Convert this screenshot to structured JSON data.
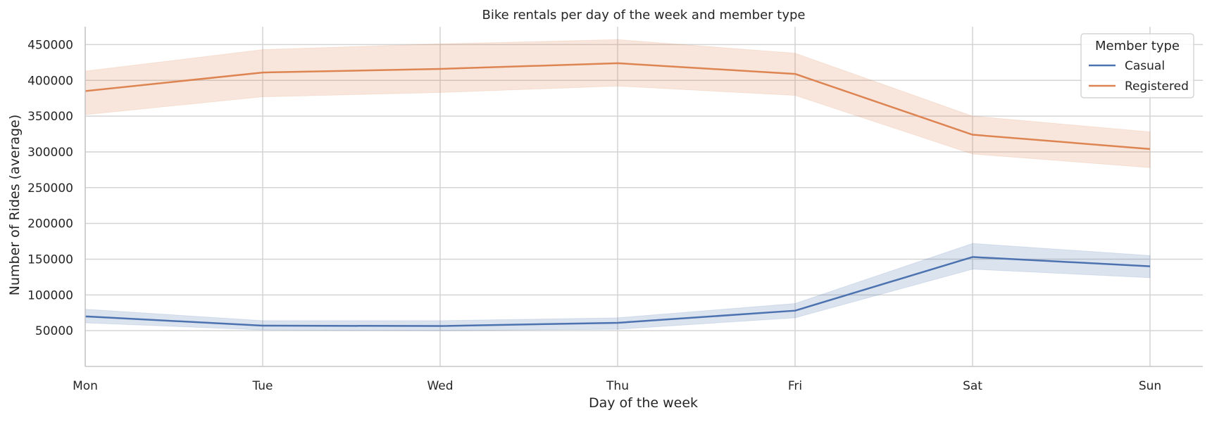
{
  "chart_data": {
    "type": "line",
    "title": "Bike rentals per day of the week and member type",
    "xlabel": "Day of the week",
    "ylabel": "Number of Rides (average)",
    "categories": [
      "Mon",
      "Tue",
      "Wed",
      "Thu",
      "Fri",
      "Sat",
      "Sun"
    ],
    "ylim": [
      0,
      475000
    ],
    "yticks": [
      50000,
      100000,
      150000,
      200000,
      250000,
      300000,
      350000,
      400000,
      450000
    ],
    "grid": true,
    "legend": {
      "title": "Member type",
      "placement": "top-right"
    },
    "series": [
      {
        "name": "Casual",
        "color": "#4c72b0",
        "values": [
          70000,
          57000,
          56500,
          61000,
          78000,
          153000,
          140000
        ],
        "ci_lower": [
          61000,
          51000,
          50000,
          52000,
          68000,
          136000,
          124000
        ],
        "ci_upper": [
          80000,
          64000,
          64000,
          68000,
          88000,
          172000,
          155000
        ]
      },
      {
        "name": "Registered",
        "color": "#dd8452",
        "values": [
          385000,
          411000,
          416000,
          424000,
          409000,
          324000,
          304000
        ],
        "ci_lower": [
          352000,
          377000,
          383000,
          392000,
          379000,
          297000,
          278000
        ],
        "ci_upper": [
          413000,
          443000,
          451000,
          457000,
          438000,
          350000,
          328000
        ]
      }
    ]
  }
}
